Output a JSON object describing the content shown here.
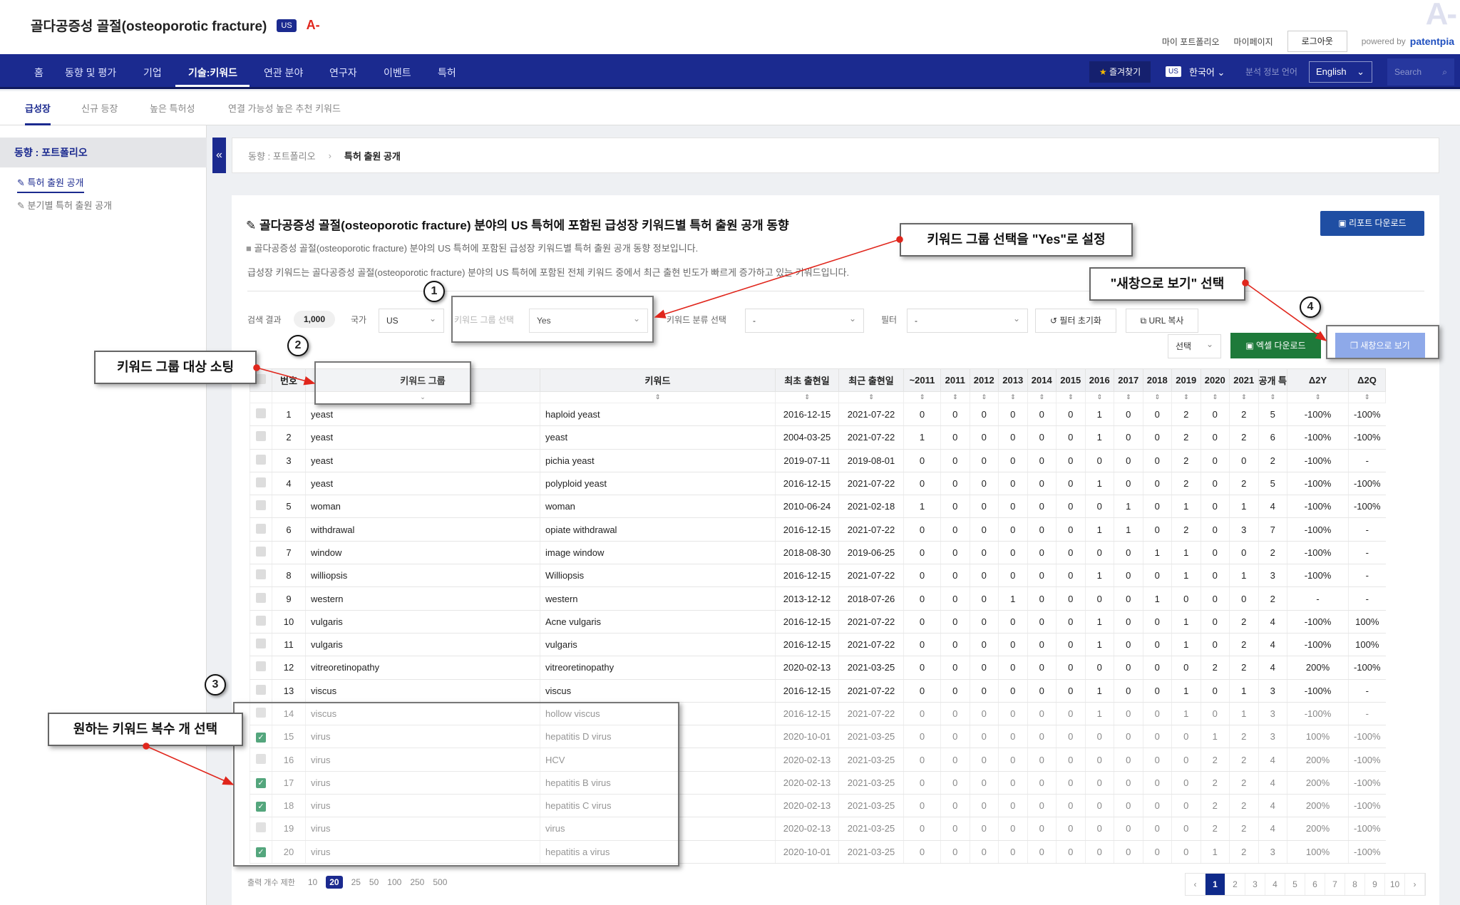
{
  "header": {
    "title": "골다공증성 골절(osteoporotic fracture)",
    "country_badge": "US",
    "grade": "A-",
    "watermark": "A-",
    "links": [
      "마이 포트폴리오",
      "마이페이지"
    ],
    "logout": "로그아웃",
    "powered_by": "powered by",
    "brand": "patentpia"
  },
  "nav": {
    "items": [
      "홈",
      "동향 및 평가",
      "기업",
      "기술:키워드",
      "연관 분야",
      "연구자",
      "이벤트",
      "특허"
    ],
    "active": "기술:키워드",
    "favorites": "즐겨찾기",
    "lang_badge": "US",
    "language": "한국어",
    "analysis_lang_label": "분석 정보 언어",
    "analysis_lang": "English",
    "search_placeholder": "Search"
  },
  "subtabs": {
    "items": [
      "급성장",
      "신규 등장",
      "높은 특허성",
      "연결 가능성 높은 추천 키워드"
    ],
    "active": "급성장"
  },
  "sidebar": {
    "section": "동향 : 포트폴리오",
    "items": [
      "특허 출원 공개",
      "분기별 특허 출원 공개"
    ],
    "active": "특허 출원 공개"
  },
  "breadcrumb": {
    "parent": "동향 : 포트폴리오",
    "sep": "›",
    "current": "특허 출원 공개"
  },
  "main": {
    "title": "골다공증성 골절(osteoporotic fracture) 분야의 US 특허에 포함된 급성장 키워드별 특허 출원 공개 동향",
    "desc": "골다공증성 골절(osteoporotic fracture) 분야의 US 특허에 포함된 급성장 키워드별 특허 출원 공개 동향 정보입니다.",
    "text": "급성장 키워드는 골다공증성 골절(osteoporotic fracture) 분야의 US 특허에 포함된 전체 키워드 중에서 최근 출현 빈도가 빠르게 증가하고 있는 키워드입니다.",
    "report_download": "리포트 다운로드"
  },
  "filters": {
    "result_label": "검색 결과",
    "result_count": "1,000",
    "country_label": "국가",
    "country": "US",
    "group_label": "키워드 그룹 선택",
    "group": "Yes",
    "class_label": "키워드 분류 선택",
    "class": "-",
    "filter_label": "필터",
    "filter": "-",
    "reset": "필터 초기화",
    "url_copy": "URL 복사",
    "select": "선택",
    "excel": "엑셀 다운로드",
    "new_window": "새창으로 보기"
  },
  "table": {
    "columns": [
      "번호",
      "키워드 그룹",
      "키워드",
      "최초 출현일",
      "최근 출현일",
      "~2011",
      "2011",
      "2012",
      "2013",
      "2014",
      "2015",
      "2016",
      "2017",
      "2018",
      "2019",
      "2020",
      "2021",
      "공개 특허수",
      "Δ2Y",
      "Δ2Q"
    ],
    "rows": [
      {
        "n": "1",
        "group": "yeast",
        "kw": "haploid yeast",
        "first": "2016-12-15",
        "last": "2021-07-22",
        "y": [
          "0",
          "0",
          "0",
          "0",
          "0",
          "0",
          "1",
          "0",
          "0",
          "2",
          "0",
          "2"
        ],
        "total": "5",
        "d2y": "-100%",
        "d2q": "-100%",
        "checked": false
      },
      {
        "n": "2",
        "group": "yeast",
        "kw": "yeast",
        "first": "2004-03-25",
        "last": "2021-07-22",
        "y": [
          "1",
          "0",
          "0",
          "0",
          "0",
          "0",
          "1",
          "0",
          "0",
          "2",
          "0",
          "2"
        ],
        "total": "6",
        "d2y": "-100%",
        "d2q": "-100%",
        "checked": false
      },
      {
        "n": "3",
        "group": "yeast",
        "kw": "pichia yeast",
        "first": "2019-07-11",
        "last": "2019-08-01",
        "y": [
          "0",
          "0",
          "0",
          "0",
          "0",
          "0",
          "0",
          "0",
          "0",
          "2",
          "0",
          "0"
        ],
        "total": "2",
        "d2y": "-100%",
        "d2q": "-",
        "checked": false
      },
      {
        "n": "4",
        "group": "yeast",
        "kw": "polyploid yeast",
        "first": "2016-12-15",
        "last": "2021-07-22",
        "y": [
          "0",
          "0",
          "0",
          "0",
          "0",
          "0",
          "1",
          "0",
          "0",
          "2",
          "0",
          "2"
        ],
        "total": "5",
        "d2y": "-100%",
        "d2q": "-100%",
        "checked": false
      },
      {
        "n": "5",
        "group": "woman",
        "kw": "woman",
        "first": "2010-06-24",
        "last": "2021-02-18",
        "y": [
          "1",
          "0",
          "0",
          "0",
          "0",
          "0",
          "0",
          "1",
          "0",
          "1",
          "0",
          "1"
        ],
        "total": "4",
        "d2y": "-100%",
        "d2q": "-100%",
        "checked": false
      },
      {
        "n": "6",
        "group": "withdrawal",
        "kw": "opiate withdrawal",
        "first": "2016-12-15",
        "last": "2021-07-22",
        "y": [
          "0",
          "0",
          "0",
          "0",
          "0",
          "0",
          "1",
          "1",
          "0",
          "2",
          "0",
          "3"
        ],
        "total": "7",
        "d2y": "-100%",
        "d2q": "-",
        "checked": false
      },
      {
        "n": "7",
        "group": "window",
        "kw": "image window",
        "first": "2018-08-30",
        "last": "2019-06-25",
        "y": [
          "0",
          "0",
          "0",
          "0",
          "0",
          "0",
          "0",
          "0",
          "1",
          "1",
          "0",
          "0"
        ],
        "total": "2",
        "d2y": "-100%",
        "d2q": "-",
        "checked": false
      },
      {
        "n": "8",
        "group": "williopsis",
        "kw": "Williopsis",
        "first": "2016-12-15",
        "last": "2021-07-22",
        "y": [
          "0",
          "0",
          "0",
          "0",
          "0",
          "0",
          "1",
          "0",
          "0",
          "1",
          "0",
          "1"
        ],
        "total": "3",
        "d2y": "-100%",
        "d2q": "-",
        "checked": false
      },
      {
        "n": "9",
        "group": "western",
        "kw": "western",
        "first": "2013-12-12",
        "last": "2018-07-26",
        "y": [
          "0",
          "0",
          "0",
          "1",
          "0",
          "0",
          "0",
          "0",
          "1",
          "0",
          "0",
          "0"
        ],
        "total": "2",
        "d2y": "-",
        "d2q": "-",
        "checked": false
      },
      {
        "n": "10",
        "group": "vulgaris",
        "kw": "Acne vulgaris",
        "first": "2016-12-15",
        "last": "2021-07-22",
        "y": [
          "0",
          "0",
          "0",
          "0",
          "0",
          "0",
          "1",
          "0",
          "0",
          "1",
          "0",
          "2"
        ],
        "total": "4",
        "d2y": "-100%",
        "d2q": "100%",
        "checked": false
      },
      {
        "n": "11",
        "group": "vulgaris",
        "kw": "vulgaris",
        "first": "2016-12-15",
        "last": "2021-07-22",
        "y": [
          "0",
          "0",
          "0",
          "0",
          "0",
          "0",
          "1",
          "0",
          "0",
          "1",
          "0",
          "2"
        ],
        "total": "4",
        "d2y": "-100%",
        "d2q": "100%",
        "checked": false
      },
      {
        "n": "12",
        "group": "vitreoretinopathy",
        "kw": "vitreoretinopathy",
        "first": "2020-02-13",
        "last": "2021-03-25",
        "y": [
          "0",
          "0",
          "0",
          "0",
          "0",
          "0",
          "0",
          "0",
          "0",
          "0",
          "2",
          "2"
        ],
        "total": "4",
        "d2y": "200%",
        "d2q": "-100%",
        "checked": false
      },
      {
        "n": "13",
        "group": "viscus",
        "kw": "viscus",
        "first": "2016-12-15",
        "last": "2021-07-22",
        "y": [
          "0",
          "0",
          "0",
          "0",
          "0",
          "0",
          "1",
          "0",
          "0",
          "1",
          "0",
          "1"
        ],
        "total": "3",
        "d2y": "-100%",
        "d2q": "-",
        "checked": false
      },
      {
        "n": "14",
        "group": "viscus",
        "kw": "hollow viscus",
        "first": "2016-12-15",
        "last": "2021-07-22",
        "y": [
          "0",
          "0",
          "0",
          "0",
          "0",
          "0",
          "1",
          "0",
          "0",
          "1",
          "0",
          "1"
        ],
        "total": "3",
        "d2y": "-100%",
        "d2q": "-",
        "checked": false
      },
      {
        "n": "15",
        "group": "virus",
        "kw": "hepatitis D virus",
        "first": "2020-10-01",
        "last": "2021-03-25",
        "y": [
          "0",
          "0",
          "0",
          "0",
          "0",
          "0",
          "0",
          "0",
          "0",
          "0",
          "1",
          "2"
        ],
        "total": "3",
        "d2y": "100%",
        "d2q": "-100%",
        "checked": true
      },
      {
        "n": "16",
        "group": "virus",
        "kw": "HCV",
        "first": "2020-02-13",
        "last": "2021-03-25",
        "y": [
          "0",
          "0",
          "0",
          "0",
          "0",
          "0",
          "0",
          "0",
          "0",
          "0",
          "2",
          "2"
        ],
        "total": "4",
        "d2y": "200%",
        "d2q": "-100%",
        "checked": false
      },
      {
        "n": "17",
        "group": "virus",
        "kw": "hepatitis B virus",
        "first": "2020-02-13",
        "last": "2021-03-25",
        "y": [
          "0",
          "0",
          "0",
          "0",
          "0",
          "0",
          "0",
          "0",
          "0",
          "0",
          "2",
          "2"
        ],
        "total": "4",
        "d2y": "200%",
        "d2q": "-100%",
        "checked": true
      },
      {
        "n": "18",
        "group": "virus",
        "kw": "hepatitis C virus",
        "first": "2020-02-13",
        "last": "2021-03-25",
        "y": [
          "0",
          "0",
          "0",
          "0",
          "0",
          "0",
          "0",
          "0",
          "0",
          "0",
          "2",
          "2"
        ],
        "total": "4",
        "d2y": "200%",
        "d2q": "-100%",
        "checked": true
      },
      {
        "n": "19",
        "group": "virus",
        "kw": "virus",
        "first": "2020-02-13",
        "last": "2021-03-25",
        "y": [
          "0",
          "0",
          "0",
          "0",
          "0",
          "0",
          "0",
          "0",
          "0",
          "0",
          "2",
          "2"
        ],
        "total": "4",
        "d2y": "200%",
        "d2q": "-100%",
        "checked": false
      },
      {
        "n": "20",
        "group": "virus",
        "kw": "hepatitis a virus",
        "first": "2020-10-01",
        "last": "2021-03-25",
        "y": [
          "0",
          "0",
          "0",
          "0",
          "0",
          "0",
          "0",
          "0",
          "0",
          "0",
          "1",
          "2"
        ],
        "total": "3",
        "d2y": "100%",
        "d2q": "-100%",
        "checked": true
      }
    ]
  },
  "output_limit": {
    "label": "출력 개수 제한",
    "options": [
      "10",
      "20",
      "25",
      "50",
      "100",
      "250",
      "500"
    ],
    "selected": "20"
  },
  "pagination": {
    "prev": "‹",
    "pages": [
      "1",
      "2",
      "3",
      "4",
      "5",
      "6",
      "7",
      "8",
      "9",
      "10"
    ],
    "current": "1",
    "next": "›"
  },
  "annotations": {
    "note1": "키워드 그룹 선택을 \"Yes\"로 설정",
    "note2": "키워드 그룹 대상 소팅",
    "note3": "원하는 키워드 복수 개 선택",
    "note4": "\"새창으로 보기\" 선택",
    "steps": [
      "1",
      "2",
      "3",
      "4"
    ],
    "color": "#e0261c"
  }
}
